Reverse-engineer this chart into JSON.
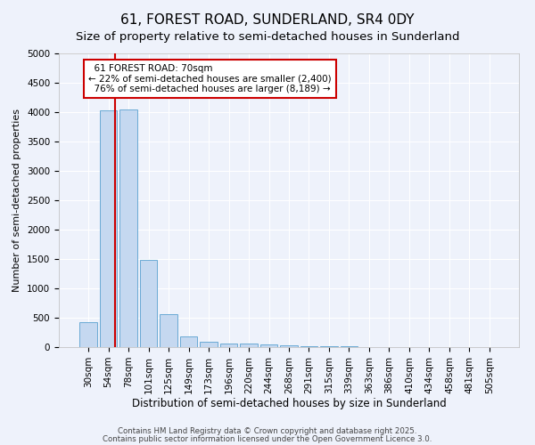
{
  "title": "61, FOREST ROAD, SUNDERLAND, SR4 0DY",
  "subtitle": "Size of property relative to semi-detached houses in Sunderland",
  "xlabel": "Distribution of semi-detached houses by size in Sunderland",
  "ylabel": "Number of semi-detached properties",
  "categories": [
    "30sqm",
    "54sqm",
    "78sqm",
    "101sqm",
    "125sqm",
    "149sqm",
    "173sqm",
    "196sqm",
    "220sqm",
    "244sqm",
    "268sqm",
    "291sqm",
    "315sqm",
    "339sqm",
    "363sqm",
    "386sqm",
    "410sqm",
    "434sqm",
    "458sqm",
    "481sqm",
    "505sqm"
  ],
  "values": [
    420,
    4030,
    4050,
    1480,
    560,
    185,
    95,
    65,
    55,
    50,
    30,
    15,
    10,
    8,
    5,
    5,
    4,
    3,
    3,
    2,
    2
  ],
  "bar_color": "#c5d8f0",
  "bar_edge_color": "#6aaad4",
  "background_color": "#eef2fb",
  "grid_color": "#ffffff",
  "property_label": "61 FOREST ROAD: 70sqm",
  "pct_smaller": "22% of semi-detached houses are smaller (2,400)",
  "pct_larger": "76% of semi-detached houses are larger (8,189)",
  "annotation_box_color": "#ffffff",
  "annotation_box_edge": "#cc0000",
  "vline_color": "#cc0000",
  "vline_x": 1.33,
  "ylim": [
    0,
    5000
  ],
  "yticks": [
    0,
    500,
    1000,
    1500,
    2000,
    2500,
    3000,
    3500,
    4000,
    4500,
    5000
  ],
  "footer_line1": "Contains HM Land Registry data © Crown copyright and database right 2025.",
  "footer_line2": "Contains public sector information licensed under the Open Government Licence 3.0.",
  "title_fontsize": 11,
  "subtitle_fontsize": 9.5,
  "xlabel_fontsize": 8.5,
  "ylabel_fontsize": 8,
  "tick_fontsize": 7.5,
  "annot_fontsize": 7.5
}
